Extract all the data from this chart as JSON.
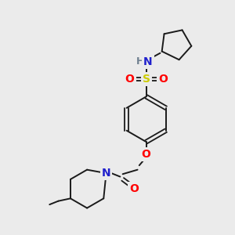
{
  "bg_color": "#ebebeb",
  "bond_color": "#1a1a1a",
  "atom_colors": {
    "N": "#2020cc",
    "O": "#ff0000",
    "S": "#cccc00",
    "H": "#708090",
    "C": "#1a1a1a"
  }
}
